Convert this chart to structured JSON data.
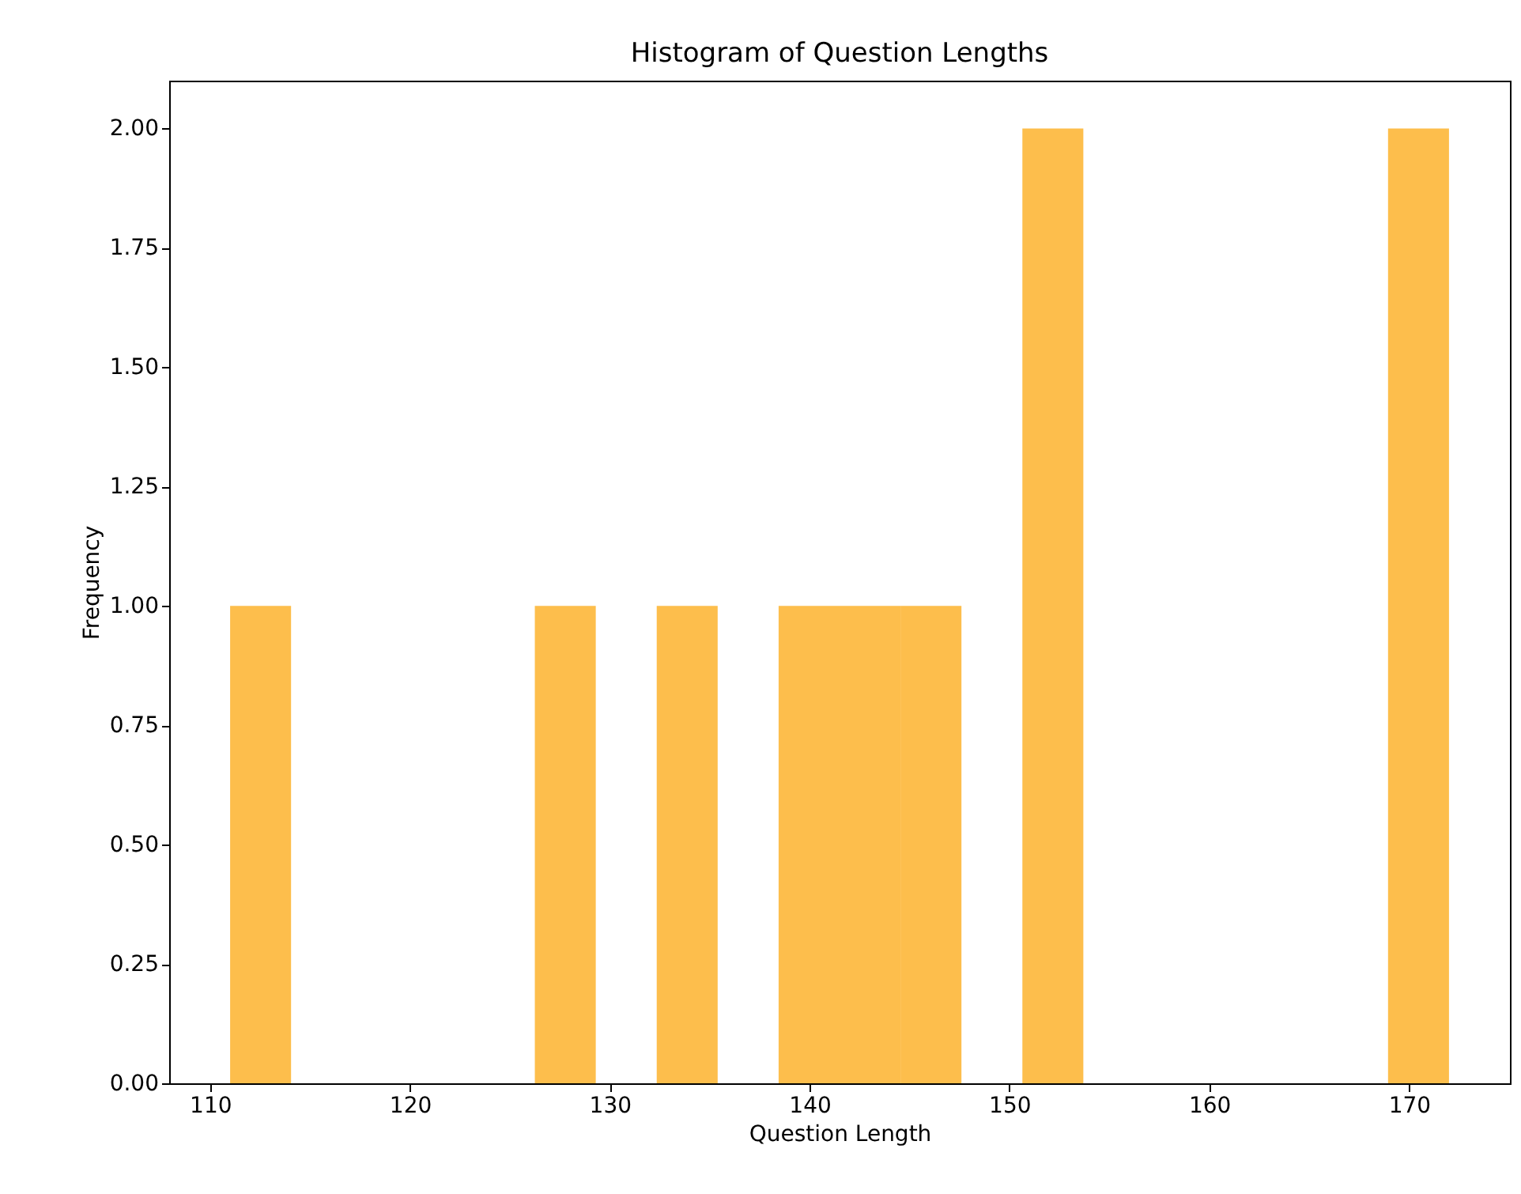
{
  "chart_data": {
    "type": "histogram",
    "title": "Histogram of Question Lengths",
    "xlabel": "Question Length",
    "ylabel": "Frequency",
    "bins": [
      111,
      114.05,
      117.1,
      120.15,
      123.2,
      126.25,
      129.3,
      132.35,
      135.4,
      138.45,
      141.5,
      144.55,
      147.6,
      150.65,
      153.7,
      156.75,
      159.8,
      162.85,
      165.9,
      168.95,
      172
    ],
    "values": [
      1,
      0,
      0,
      0,
      0,
      1,
      0,
      1,
      0,
      1,
      1,
      1,
      0,
      2,
      0,
      0,
      0,
      0,
      0,
      2
    ],
    "color": "#fdbe4c",
    "xlim": [
      107.95,
      175.05
    ],
    "xticks": [
      110,
      120,
      130,
      140,
      150,
      160,
      170
    ],
    "ylim": [
      0,
      2.1
    ],
    "yticks": [
      {
        "value": 0,
        "label": "0.00"
      },
      {
        "value": 0.25,
        "label": "0.25"
      },
      {
        "value": 0.5,
        "label": "0.50"
      },
      {
        "value": 0.75,
        "label": "0.75"
      },
      {
        "value": 1,
        "label": "1.00"
      },
      {
        "value": 1.25,
        "label": "1.25"
      },
      {
        "value": 1.5,
        "label": "1.50"
      },
      {
        "value": 1.75,
        "label": "1.75"
      },
      {
        "value": 2,
        "label": "2.00"
      }
    ],
    "grid": false
  }
}
